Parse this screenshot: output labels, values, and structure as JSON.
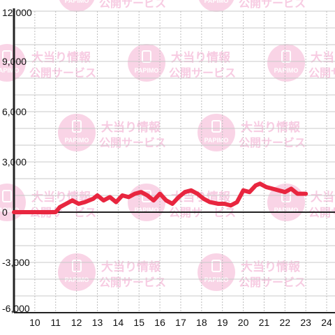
{
  "watermark": {
    "brand": "PAPIMO",
    "line1": "大当り情報",
    "line2": "公開サービス",
    "color": "#f7c6df"
  },
  "chart_data": {
    "type": "line",
    "title": "",
    "xlabel": "",
    "ylabel": "",
    "xlim": [
      9.0,
      24.4
    ],
    "ylim": [
      -6000,
      12000
    ],
    "y_ticks": [
      12000,
      9000,
      6000,
      3000,
      0,
      -3000,
      -6000
    ],
    "y_tick_labels": [
      "12,000",
      "9,000",
      "6,000",
      "3,000",
      "0",
      "-3,000",
      "-6,000"
    ],
    "x_ticks": [
      10,
      11,
      12,
      13,
      14,
      15,
      16,
      17,
      18,
      19,
      20,
      21,
      22,
      23,
      24
    ],
    "x_tick_labels": [
      "10",
      "11",
      "12",
      "13",
      "14",
      "15",
      "16",
      "17",
      "18",
      "19",
      "20",
      "21",
      "22",
      "23",
      "24"
    ],
    "grid": true,
    "line_color": "#e8263f",
    "series": [
      {
        "x": [
          9.0,
          10.0,
          11.0,
          11.2,
          11.5,
          11.8,
          12.1,
          12.4,
          12.8,
          13.0,
          13.3,
          13.6,
          13.9,
          14.2,
          14.5,
          14.8,
          15.1,
          15.4,
          15.7,
          16.0,
          16.3,
          16.6,
          16.9,
          17.2,
          17.5,
          17.8,
          18.1,
          18.4,
          18.8,
          19.1,
          19.4,
          19.7,
          20.0,
          20.3,
          20.6,
          20.8,
          21.1,
          21.4,
          21.7,
          22.0,
          22.3,
          22.6,
          23.0
        ],
        "y": [
          0,
          0,
          0,
          300,
          500,
          700,
          500,
          600,
          800,
          1000,
          700,
          900,
          600,
          1000,
          900,
          1100,
          1200,
          1000,
          700,
          1100,
          700,
          500,
          900,
          1200,
          1300,
          1100,
          800,
          600,
          500,
          500,
          400,
          600,
          1300,
          1200,
          1600,
          1700,
          1500,
          1400,
          1300,
          1200,
          1400,
          1100,
          1100
        ]
      }
    ]
  }
}
